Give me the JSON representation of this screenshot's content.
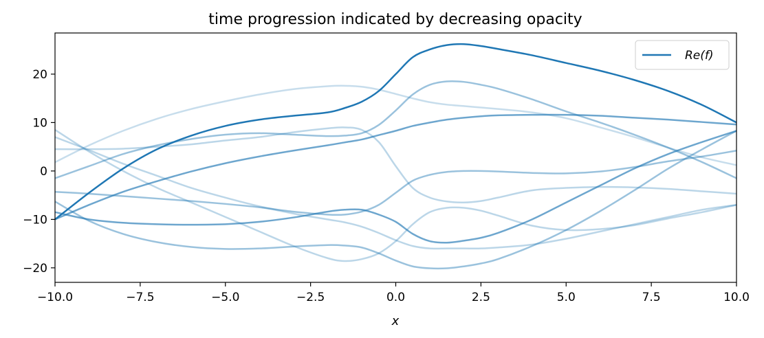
{
  "chart_data": {
    "type": "line",
    "title": "time progression indicated by decreasing opacity",
    "xlabel": "x",
    "ylabel": "",
    "xlim": [
      -10,
      10
    ],
    "ylim": [
      -23,
      28.5
    ],
    "xticks": [
      -10,
      -7.5,
      -5,
      -2.5,
      0,
      2.5,
      5,
      7.5,
      10
    ],
    "xtick_labels": [
      "−10.0",
      "−7.5",
      "−5.0",
      "−2.5",
      "0.0",
      "2.5",
      "5.0",
      "7.5",
      "10.0"
    ],
    "yticks": [
      -20,
      -10,
      0,
      10,
      20
    ],
    "ytick_labels": [
      "−20",
      "−10",
      "0",
      "10",
      "20"
    ],
    "grid": false,
    "legend": {
      "position": "top-right",
      "entries": [
        "Re(f)"
      ]
    },
    "color": "#1f77b4",
    "x": [
      -10,
      -9,
      -8,
      -7,
      -6,
      -5,
      -4,
      -3,
      -2,
      -1.5,
      -1,
      -0.5,
      0,
      0.5,
      1,
      1.5,
      2,
      2.5,
      3,
      4,
      5,
      6,
      7,
      8,
      9,
      10
    ],
    "series": [
      {
        "name": "Re(f)",
        "opacity": 1.0,
        "values": [
          -10,
          -4.5,
          0.5,
          4.5,
          7.3,
          9.3,
          10.6,
          11.4,
          12.1,
          13.0,
          14.3,
          16.5,
          20,
          23.5,
          25.1,
          26.0,
          26.2,
          25.8,
          25.2,
          23.9,
          22.3,
          20.7,
          18.8,
          16.5,
          13.6,
          10
        ]
      },
      {
        "opacity": 0.65,
        "values": [
          -10,
          -7,
          -4.3,
          -2.1,
          -0.1,
          1.6,
          3.0,
          4.2,
          5.3,
          5.9,
          6.5,
          7.4,
          8.3,
          9.3,
          10.0,
          10.6,
          11.0,
          11.3,
          11.5,
          11.6,
          11.6,
          11.4,
          11.0,
          10.6,
          10.1,
          9.6
        ]
      },
      {
        "opacity": 0.65,
        "values": [
          -8.5,
          -10.0,
          -10.7,
          -11.0,
          -11.1,
          -11.0,
          -10.5,
          -9.6,
          -8.4,
          -8.0,
          -8.0,
          -9.0,
          -10.5,
          -13.0,
          -14.5,
          -14.8,
          -14.4,
          -13.8,
          -12.8,
          -10.0,
          -6.5,
          -3.0,
          0.5,
          3.5,
          6.0,
          8.3
        ]
      },
      {
        "opacity": 0.45,
        "values": [
          -6.3,
          -10.3,
          -13.0,
          -14.7,
          -15.7,
          -16.1,
          -16.0,
          -15.6,
          -15.3,
          -15.4,
          -15.8,
          -17.0,
          -18.5,
          -19.7,
          -20.1,
          -20.1,
          -19.7,
          -19.1,
          -18.2,
          -15.5,
          -12.2,
          -8.3,
          -4.0,
          0.5,
          4.5,
          8.3
        ]
      },
      {
        "opacity": 0.45,
        "values": [
          -4.3,
          -4.7,
          -5.2,
          -5.7,
          -6.2,
          -6.8,
          -7.5,
          -8.4,
          -9.0,
          -9.0,
          -8.4,
          -7.0,
          -4.5,
          -2.0,
          -0.8,
          -0.2,
          0.0,
          0.0,
          -0.1,
          -0.4,
          -0.5,
          -0.1,
          0.8,
          2.0,
          3.0,
          4.2
        ]
      },
      {
        "opacity": 0.45,
        "values": [
          -1.5,
          1.0,
          3.5,
          5.3,
          6.6,
          7.5,
          7.8,
          7.5,
          7.2,
          7.3,
          7.8,
          9.5,
          12.5,
          15.8,
          17.8,
          18.5,
          18.4,
          17.8,
          17.0,
          14.8,
          12.3,
          10.0,
          7.5,
          4.8,
          1.8,
          -1.5
        ]
      },
      {
        "opacity": 0.3,
        "values": [
          8.5,
          4.0,
          0.0,
          -3.5,
          -6.5,
          -9.5,
          -12.5,
          -15.5,
          -18.0,
          -18.6,
          -18.2,
          -17.0,
          -14.5,
          -11.0,
          -8.5,
          -7.6,
          -7.6,
          -8.2,
          -9.2,
          -11.3,
          -12.2,
          -12.0,
          -11.2,
          -9.8,
          -8.5,
          -7.0
        ]
      },
      {
        "opacity": 0.3,
        "values": [
          4.5,
          4.5,
          4.6,
          5.0,
          5.5,
          6.3,
          7.0,
          8.0,
          8.8,
          9.0,
          8.5,
          6.0,
          1.0,
          -3.5,
          -5.5,
          -6.3,
          -6.5,
          -6.2,
          -5.5,
          -4.0,
          -3.5,
          -3.3,
          -3.4,
          -3.7,
          -4.2,
          -4.7
        ]
      },
      {
        "opacity": 0.3,
        "values": [
          7.0,
          4.3,
          1.5,
          -1.0,
          -3.5,
          -5.5,
          -7.3,
          -8.8,
          -10.0,
          -10.6,
          -11.5,
          -12.8,
          -14.3,
          -15.5,
          -16.0,
          -16.0,
          -16.0,
          -16.0,
          -15.8,
          -15.2,
          -14.0,
          -12.5,
          -11.0,
          -9.5,
          -8.0,
          -7.0
        ]
      },
      {
        "opacity": 0.25,
        "values": [
          1.8,
          5.3,
          8.3,
          10.8,
          12.8,
          14.4,
          15.8,
          16.9,
          17.5,
          17.6,
          17.4,
          16.8,
          15.9,
          15.0,
          14.2,
          13.7,
          13.4,
          13.1,
          12.8,
          12.1,
          10.9,
          9.0,
          7.0,
          4.8,
          2.8,
          1.2
        ]
      }
    ]
  }
}
